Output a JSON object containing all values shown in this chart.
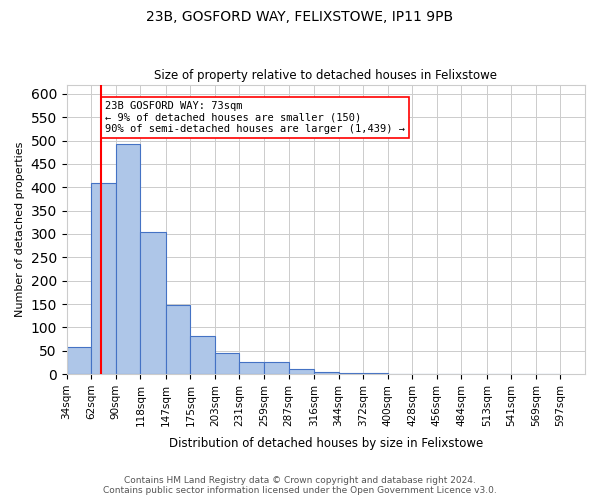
{
  "title": "23B, GOSFORD WAY, FELIXSTOWE, IP11 9PB",
  "subtitle": "Size of property relative to detached houses in Felixstowe",
  "xlabel": "Distribution of detached houses by size in Felixstowe",
  "ylabel": "Number of detached properties",
  "bin_labels": [
    "34sqm",
    "62sqm",
    "90sqm",
    "118sqm",
    "147sqm",
    "175sqm",
    "203sqm",
    "231sqm",
    "259sqm",
    "287sqm",
    "316sqm",
    "344sqm",
    "372sqm",
    "400sqm",
    "428sqm",
    "456sqm",
    "484sqm",
    "513sqm",
    "541sqm",
    "569sqm",
    "597sqm"
  ],
  "bin_edges": [
    34,
    62,
    90,
    118,
    147,
    175,
    203,
    231,
    259,
    287,
    316,
    344,
    372,
    400,
    428,
    456,
    484,
    513,
    541,
    569,
    597
  ],
  "bar_heights": [
    57,
    410,
    493,
    305,
    148,
    82,
    45,
    25,
    25,
    10,
    5,
    3,
    2,
    1,
    1,
    1,
    0,
    0,
    0,
    0
  ],
  "bar_color": "#aec6e8",
  "bar_edge_color": "#4472c4",
  "red_line_x": 73,
  "annotation_title": "23B GOSFORD WAY: 73sqm",
  "annotation_line1": "← 9% of detached houses are smaller (150)",
  "annotation_line2": "90% of semi-detached houses are larger (1,439) →",
  "ylim": [
    0,
    620
  ],
  "yticks": [
    0,
    50,
    100,
    150,
    200,
    250,
    300,
    350,
    400,
    450,
    500,
    550,
    600
  ],
  "footer_line1": "Contains HM Land Registry data © Crown copyright and database right 2024.",
  "footer_line2": "Contains public sector information licensed under the Open Government Licence v3.0.",
  "background_color": "#ffffff",
  "grid_color": "#cccccc"
}
